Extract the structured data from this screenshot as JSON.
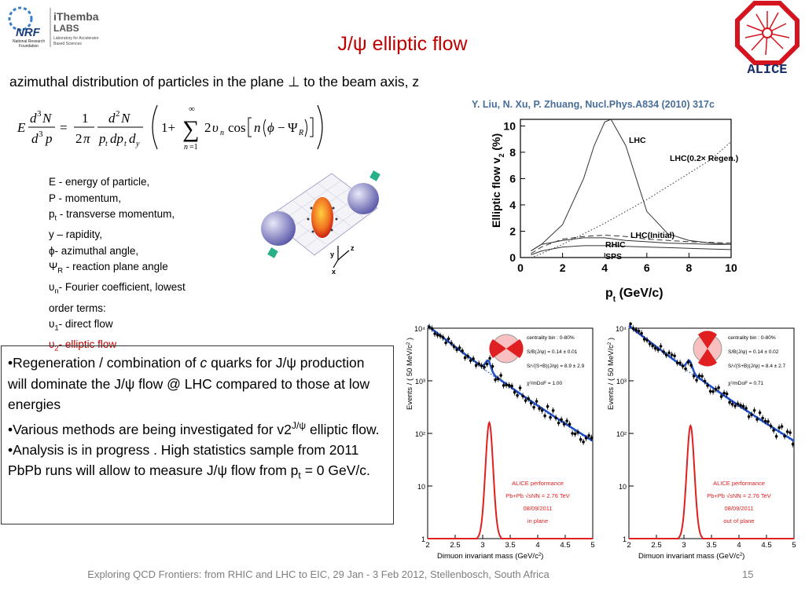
{
  "header": {
    "title": "J/ψ elliptic flow",
    "subtitle": "azimuthal distribution of particles in the plane ⊥ to the beam axis, z",
    "citation": "Y. Liu, N. Xu, P. Zhuang, Nucl.Phys.A834 (2010) 317c"
  },
  "logos": {
    "nrf_abbrev": "NRF",
    "nrf_name_line1": "National Research",
    "nrf_name_line2": "Foundation",
    "ithemba_line1": "iThemba",
    "ithemba_line2": "LABS",
    "ithemba_desc1": "Laboratory for Accelerator",
    "ithemba_desc2": "Based Sciences",
    "alice": "ALICE"
  },
  "definitions": {
    "e": "E - energy of particle,",
    "p": "P -  momentum,",
    "pt_sym": "p",
    "pt_sub": "t",
    "pt_rest": " - transverse momentum,",
    "y": "y – rapidity,",
    "phi": "ϕ- azimuthal angle,",
    "psi_sym": "Ψ",
    "psi_sub": "R",
    "psi_rest": " -  reaction plane angle",
    "vn_sym": "υ",
    "vn_sub": "n",
    "vn_rest": "- Fourier coefficient, lowest",
    "vn_rest2": "order terms:",
    "v1_sym": "υ",
    "v1_sub": "1",
    "v1_rest": "- direct flow",
    "v2_sym": "υ",
    "v2_sub": "2",
    "v2_rest": "- elliptic flow"
  },
  "collision_axes": {
    "y": "y",
    "z": "z",
    "x": "x"
  },
  "bullets": {
    "b1a": "•Regeneration / combination of ",
    "b1c": "c",
    "b1b": " quarks for J/ψ production will dominate the J/ψ flow @ LHC compared to those at low energies",
    "b2a": "•Various methods are being investigated for v2",
    "b2sup": "J/ψ",
    "b2b": " elliptic flow.",
    "b3a": "•Analysis is in progress . High statistics sample from 2011 PbPb runs will allow to measure J/ψ flow from p",
    "b3sub": "t",
    "b3b": " = 0 GeV/c."
  },
  "footer": {
    "text": "Exploring QCD Frontiers: from RHIC and LHC to EIC, 29 Jan - 3 Feb 2012, Stellenbosch, South Africa",
    "page": "15"
  },
  "chart_data": [
    {
      "type": "line",
      "xlabel": "p",
      "xlabel_sub": "t",
      "xlabel_unit": " (GeV/c)",
      "ylabel": "Elliptic flow v",
      "ylabel_sub": "2",
      "ylabel_unit": " (%)",
      "xlim": [
        0,
        10
      ],
      "ylim": [
        0,
        10.5
      ],
      "xticks": [
        "0",
        "2",
        "4",
        "6",
        "8",
        "10"
      ],
      "yticks": [
        "0",
        "2",
        "4",
        "6",
        "8",
        "10"
      ],
      "series": [
        {
          "name": "LHC",
          "style": "solid",
          "x": [
            0.5,
            1,
            2,
            3,
            3.5,
            4,
            4.3,
            5,
            5.5,
            6,
            7,
            8,
            9,
            10
          ],
          "y": [
            0.5,
            1.0,
            2.5,
            6.0,
            8.5,
            10.3,
            10.5,
            8.5,
            6.0,
            3.5,
            1.8,
            1.3,
            1.1,
            1.0
          ]
        },
        {
          "name": "LHC(0.2× Regen.)",
          "style": "dotted",
          "x": [
            0.5,
            1,
            2,
            3,
            4,
            5,
            6,
            7,
            8,
            9,
            10
          ],
          "y": [
            0.0,
            0.3,
            1.0,
            1.8,
            2.6,
            3.5,
            4.4,
            5.4,
            6.4,
            7.4,
            8.8
          ]
        },
        {
          "name": "LHC(Initial)",
          "style": "dashed",
          "x": [
            0.5,
            1,
            2,
            3,
            4,
            5,
            6,
            7,
            8,
            9,
            10
          ],
          "y": [
            0.3,
            0.8,
            1.4,
            1.6,
            1.7,
            1.6,
            1.4,
            1.3,
            1.2,
            1.15,
            1.1
          ]
        },
        {
          "name": "RHIC",
          "style": "solid",
          "x": [
            0.5,
            1,
            2,
            3,
            4,
            5,
            6,
            7,
            8,
            9,
            10
          ],
          "y": [
            0.5,
            1.0,
            1.3,
            1.5,
            1.5,
            1.3,
            1.2,
            1.1,
            1.05,
            1.0,
            1.0
          ]
        },
        {
          "name": "SPS",
          "style": "solid",
          "x": [
            0.5,
            1,
            2,
            3,
            4,
            5,
            6,
            7,
            8,
            9,
            10
          ],
          "y": [
            0.2,
            0.5,
            0.8,
            0.9,
            0.9,
            0.85,
            0.8,
            0.75,
            0.7,
            0.65,
            0.6
          ]
        }
      ],
      "labels": [
        "LHC",
        "LHC(0.2× Regen.)",
        "LHC(Initial)",
        "RHIC",
        "SPS"
      ]
    },
    {
      "type": "scatter",
      "ylabel": "Events / ( 50 MeV/c",
      "ylabel_sup": "2",
      "ylabel_end": " )",
      "xlabel": "Dimuon invariant mass (GeV/c",
      "xlabel_sup": "2",
      "xlabel_end": ")",
      "xlim": [
        2,
        5
      ],
      "ylim_log": [
        0,
        4
      ],
      "xticks": [
        "2",
        "2.5",
        "3",
        "3.5",
        "4",
        "4.5",
        "5"
      ],
      "yticks": [
        "1",
        "10",
        "10²",
        "10³",
        "10⁴"
      ],
      "annotations": [
        "centrality bin : 0-80%",
        "S/B(J/ψ) = 0.14 ± 0.01",
        "S/√(S+B)(J/ψ) = 8.9 ± 2.9",
        "χ²/mDoF = 1.00"
      ],
      "perf": [
        "ALICE performance",
        "Pb+Pb √sNN = 2.76 TeV",
        "08/09/2011",
        "in plane"
      ],
      "signal_peak": 160
    },
    {
      "type": "scatter",
      "ylabel": "Events / ( 50 MeV/c",
      "ylabel_sup": "2",
      "ylabel_end": " )",
      "xlabel": "Dimuon invariant mass (GeV/c",
      "xlabel_sup": "2",
      "xlabel_end": ")",
      "xlim": [
        2,
        5
      ],
      "ylim_log": [
        0,
        4
      ],
      "xticks": [
        "2",
        "2.5",
        "3",
        "3.5",
        "4",
        "4.5",
        "5"
      ],
      "yticks": [
        "1",
        "10",
        "10²",
        "10³",
        "10⁴"
      ],
      "annotations": [
        "centrality bin : 0-80%",
        "S/B(J/ψ) = 0.14 ± 0.02",
        "S/√(S+B)(J/ψ) = 8.4 ± 2.7",
        "χ²/mDoF = 0.71"
      ],
      "perf": [
        "ALICE performance",
        "Pb+Pb √sNN = 2.76 TeV",
        "08/09/2011",
        "out of plane"
      ],
      "signal_peak": 140
    }
  ]
}
